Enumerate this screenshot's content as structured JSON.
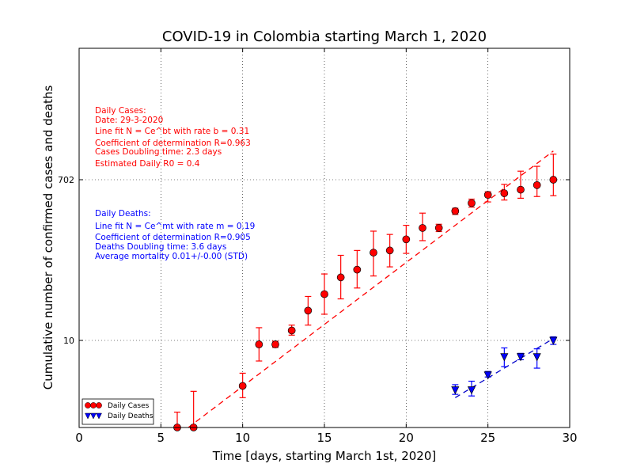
{
  "chart_data": {
    "type": "scatter",
    "title": "COVID-19 in Colombia starting March 1, 2020",
    "xlabel": "Time [days, starting March 1st, 2020]",
    "ylabel": "Cumulative number of confirmed cases and deaths",
    "xlim": [
      0,
      30
    ],
    "xticks": [
      "0",
      "5",
      "10",
      "15",
      "20",
      "25",
      "30"
    ],
    "yscale": "log",
    "yticks": [
      "10",
      "702"
    ],
    "grid": true,
    "legend_position": "bottom-left",
    "colors": {
      "cases": "#ff0000",
      "deaths": "#0000ff",
      "cases_fit": "#ff0000",
      "deaths_fit": "#0000c8"
    },
    "series": [
      {
        "name": "Daily Cases",
        "x": [
          6,
          7,
          10,
          11,
          12,
          13,
          14,
          15,
          16,
          17,
          18,
          19,
          20,
          21,
          22,
          23,
          24,
          25,
          26,
          27,
          28,
          29
        ],
        "y": [
          1,
          1,
          3,
          9,
          9,
          13,
          22,
          34,
          53,
          65,
          102,
          108,
          145,
          196,
          196,
          306,
          378,
          470,
          491,
          539,
          608,
          702
        ],
        "y_low": [
          0.6,
          0.45,
          2.2,
          5.8,
          8.3,
          11.5,
          15,
          20,
          30,
          40,
          55,
          70,
          100,
          140,
          178,
          280,
          340,
          390,
          410,
          430,
          450,
          460
        ],
        "y_high": [
          1.5,
          2.6,
          4.2,
          14,
          9.8,
          15,
          32,
          58,
          95,
          108,
          180,
          165,
          210,
          290,
          216,
          330,
          420,
          510,
          620,
          880,
          1000,
          1380
        ]
      },
      {
        "name": "Daily Deaths",
        "x": [
          23,
          24,
          25,
          26,
          27,
          28,
          29
        ],
        "y": [
          2.7,
          2.7,
          4,
          6.5,
          6.5,
          6.5,
          10
        ],
        "y_low": [
          2.4,
          2.3,
          3.8,
          5,
          6,
          4.8,
          9
        ],
        "y_high": [
          3.1,
          3.4,
          4.4,
          8.2,
          7.1,
          8,
          11
        ]
      }
    ],
    "fits": [
      {
        "series": "Daily Cases",
        "x_range": [
          6,
          29
        ],
        "y_range": [
          0.8,
          1500
        ],
        "style": "dashed"
      },
      {
        "series": "Daily Deaths",
        "x_range": [
          23,
          29
        ],
        "y_range": [
          2.2,
          10.5
        ],
        "style": "dashed"
      }
    ]
  },
  "annotations": {
    "cases": [
      "Daily Cases:",
      "Date: 29-3-2020",
      "Line fit N = Ce^bt with rate b = 0.31",
      "Coefficient of determination R=0.963",
      "Cases Doubling time: 2.3 days",
      "Estimated Daily R0 = 0.4"
    ],
    "deaths": [
      "Daily Deaths:",
      "Line fit N = Ce^mt with rate m = 0.19",
      "Coefficient of determination R=0.905",
      "Deaths Doubling time: 3.6 days",
      "Average mortality 0.01+/-0.00 (STD)"
    ]
  },
  "legend": {
    "cases": "Daily Cases",
    "deaths": "Daily Deaths"
  }
}
